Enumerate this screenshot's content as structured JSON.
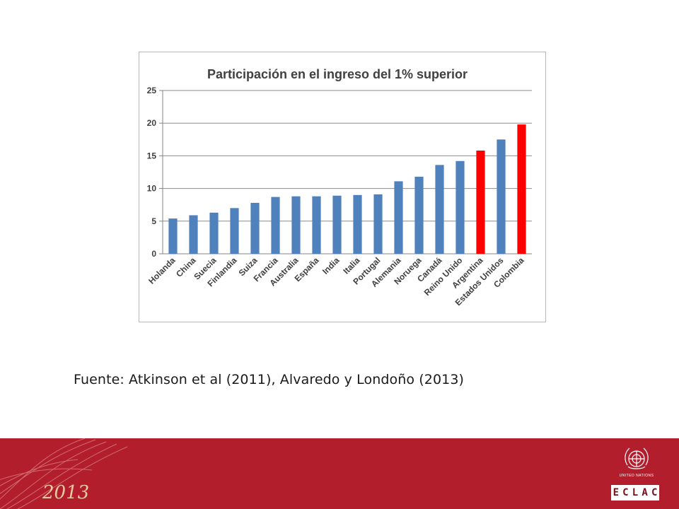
{
  "chart_data": {
    "type": "bar",
    "title": "Participación en el ingreso del 1% superior",
    "xlabel": "",
    "ylabel": "",
    "ylim": [
      0,
      25
    ],
    "yticks": [
      0,
      5,
      10,
      15,
      20,
      25
    ],
    "grid": true,
    "legend": "none",
    "categories": [
      "Holanda",
      "China",
      "Suecia",
      "Finlandia",
      "Suiza",
      "Francia",
      "Australia",
      "España",
      "India",
      "Italia",
      "Portugal",
      "Alemania",
      "Noruega",
      "Canadá",
      "Reino Unido",
      "Argentina",
      "Estados Unidos",
      "Colombia"
    ],
    "values": [
      5.4,
      5.9,
      6.3,
      7.0,
      7.8,
      8.7,
      8.8,
      8.8,
      8.9,
      9.0,
      9.1,
      11.1,
      11.8,
      13.6,
      14.2,
      15.8,
      17.5,
      19.8
    ],
    "highlighted": [
      "Argentina",
      "Colombia"
    ],
    "colors": {
      "default": "#4f81bd",
      "highlight": "#ff0000"
    }
  },
  "source": "Fuente: Atkinson et al (2011), Alvaredo y Londoño (2013)",
  "footer": {
    "year": "2013",
    "un_caption": "UNITED NATIONS",
    "eclac_letters": [
      "E",
      "C",
      "L",
      "A",
      "C"
    ],
    "background_color": "#b31e2d"
  }
}
